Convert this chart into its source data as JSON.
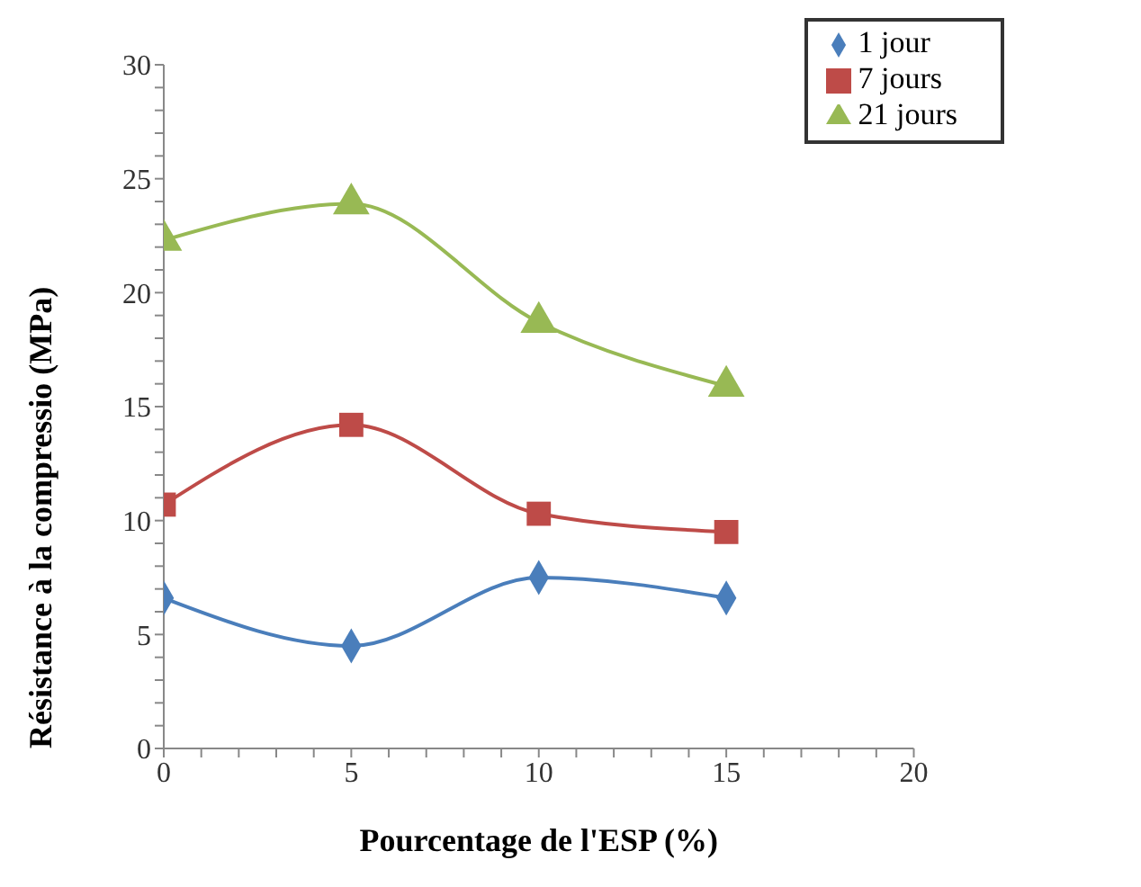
{
  "chart_data": {
    "type": "line",
    "xlabel": "Pourcentage de l'ESP (%)",
    "ylabel": "Résistance à la compressio (MPa)",
    "x": [
      0,
      5,
      10,
      15
    ],
    "series": [
      {
        "name": "1 jour",
        "color": "#4a7ebb",
        "values": [
          6.6,
          4.5,
          7.5,
          6.6
        ],
        "marker": "diamond"
      },
      {
        "name": "7 jours",
        "color": "#be4b48",
        "values": [
          10.7,
          14.2,
          10.3,
          9.5
        ],
        "marker": "square"
      },
      {
        "name": "21 jours",
        "color": "#98b954",
        "values": [
          22.3,
          23.9,
          18.7,
          15.9
        ],
        "marker": "triangle"
      }
    ],
    "xlim": [
      0,
      20
    ],
    "xticks": [
      0,
      {
        "value": 1,
        "label": null
      },
      {
        "value": 2,
        "label": null
      },
      {
        "value": 3,
        "label": null
      },
      {
        "value": 4,
        "label": null
      },
      5,
      {
        "value": 6,
        "label": null
      },
      {
        "value": 7,
        "label": null
      },
      {
        "value": 8,
        "label": null
      },
      {
        "value": 9,
        "label": null
      },
      10,
      {
        "value": 11,
        "label": null
      },
      {
        "value": 12,
        "label": null
      },
      {
        "value": 13,
        "label": null
      },
      {
        "value": 14,
        "label": null
      },
      15,
      {
        "value": 16,
        "label": null
      },
      {
        "value": 17,
        "label": null
      },
      {
        "value": 18,
        "label": null
      },
      {
        "value": 19,
        "label": null
      },
      20
    ],
    "ylim": [
      0,
      30
    ],
    "yticks": [
      0,
      {
        "value": 1,
        "label": null
      },
      {
        "value": 2,
        "label": null
      },
      {
        "value": 3,
        "label": null
      },
      {
        "value": 4,
        "label": null
      },
      5,
      {
        "value": 6,
        "label": null
      },
      {
        "value": 7,
        "label": null
      },
      {
        "value": 8,
        "label": null
      },
      {
        "value": 9,
        "label": null
      },
      10,
      {
        "value": 11,
        "label": null
      },
      {
        "value": 12,
        "label": null
      },
      {
        "value": 13,
        "label": null
      },
      {
        "value": 14,
        "label": null
      },
      15,
      {
        "value": 16,
        "label": null
      },
      {
        "value": 17,
        "label": null
      },
      {
        "value": 18,
        "label": null
      },
      {
        "value": 19,
        "label": null
      },
      20,
      {
        "value": 21,
        "label": null
      },
      {
        "value": 22,
        "label": null
      },
      {
        "value": 23,
        "label": null
      },
      {
        "value": 24,
        "label": null
      },
      25,
      {
        "value": 26,
        "label": null
      },
      {
        "value": 27,
        "label": null
      },
      {
        "value": 28,
        "label": null
      },
      {
        "value": 29,
        "label": null
      },
      30
    ],
    "grid": false,
    "legend": "top right",
    "line_style": "solid"
  }
}
